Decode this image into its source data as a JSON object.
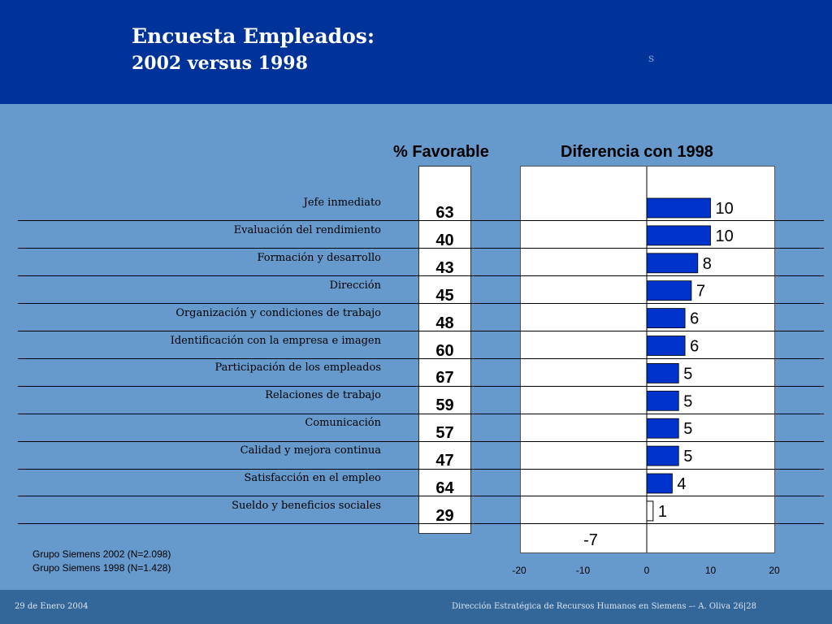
{
  "header": {
    "title_line1": "Encuesta Empleados:",
    "title_line2": "2002 versus 1998",
    "logo_mark": "s"
  },
  "column_headers": {
    "favorable": "% Favorable",
    "difference": "Diferencia con 1998"
  },
  "notes": {
    "line1": "Grupo Siemens 2002 (N=2.098)",
    "line2": "Grupo Siemens 1998 (N=1.428)"
  },
  "footer": {
    "date": "29 de Enero 2004",
    "right": "Dirección Estratégica de Recursos Humanos en Siemens –-   A. Oliva   26|28"
  },
  "colors": {
    "header_bg": "#003399",
    "body_bg": "#6699cc",
    "bar": "#0033cc"
  },
  "chart_data": {
    "type": "bar",
    "orientation": "horizontal",
    "title": "Diferencia con 1998",
    "categories": [
      "Jefe inmediato",
      "Evaluación del rendimiento",
      "Formación y desarrollo",
      "Dirección",
      "Organización y condiciones de trabajo",
      "Identificación con la empresa e imagen",
      "Participación de los empleados",
      "Relaciones de trabajo",
      "Comunicación",
      "Calidad y mejora continua",
      "Satisfacción en el empleo",
      "Sueldo y beneficios sociales"
    ],
    "favorable": [
      63,
      40,
      43,
      45,
      48,
      60,
      67,
      59,
      57,
      47,
      64,
      29
    ],
    "values": [
      10,
      10,
      8,
      7,
      6,
      6,
      5,
      5,
      5,
      5,
      4,
      1
    ],
    "value_labels": [
      "10",
      "10",
      "8",
      "7",
      "6",
      "6",
      "5",
      "5",
      "5",
      "5",
      "4",
      "1"
    ],
    "extra_value_label": "-7",
    "xlim": [
      -20,
      20
    ],
    "xticks": [
      "-20",
      "-10",
      "0",
      "10",
      "20"
    ],
    "grid": false
  }
}
